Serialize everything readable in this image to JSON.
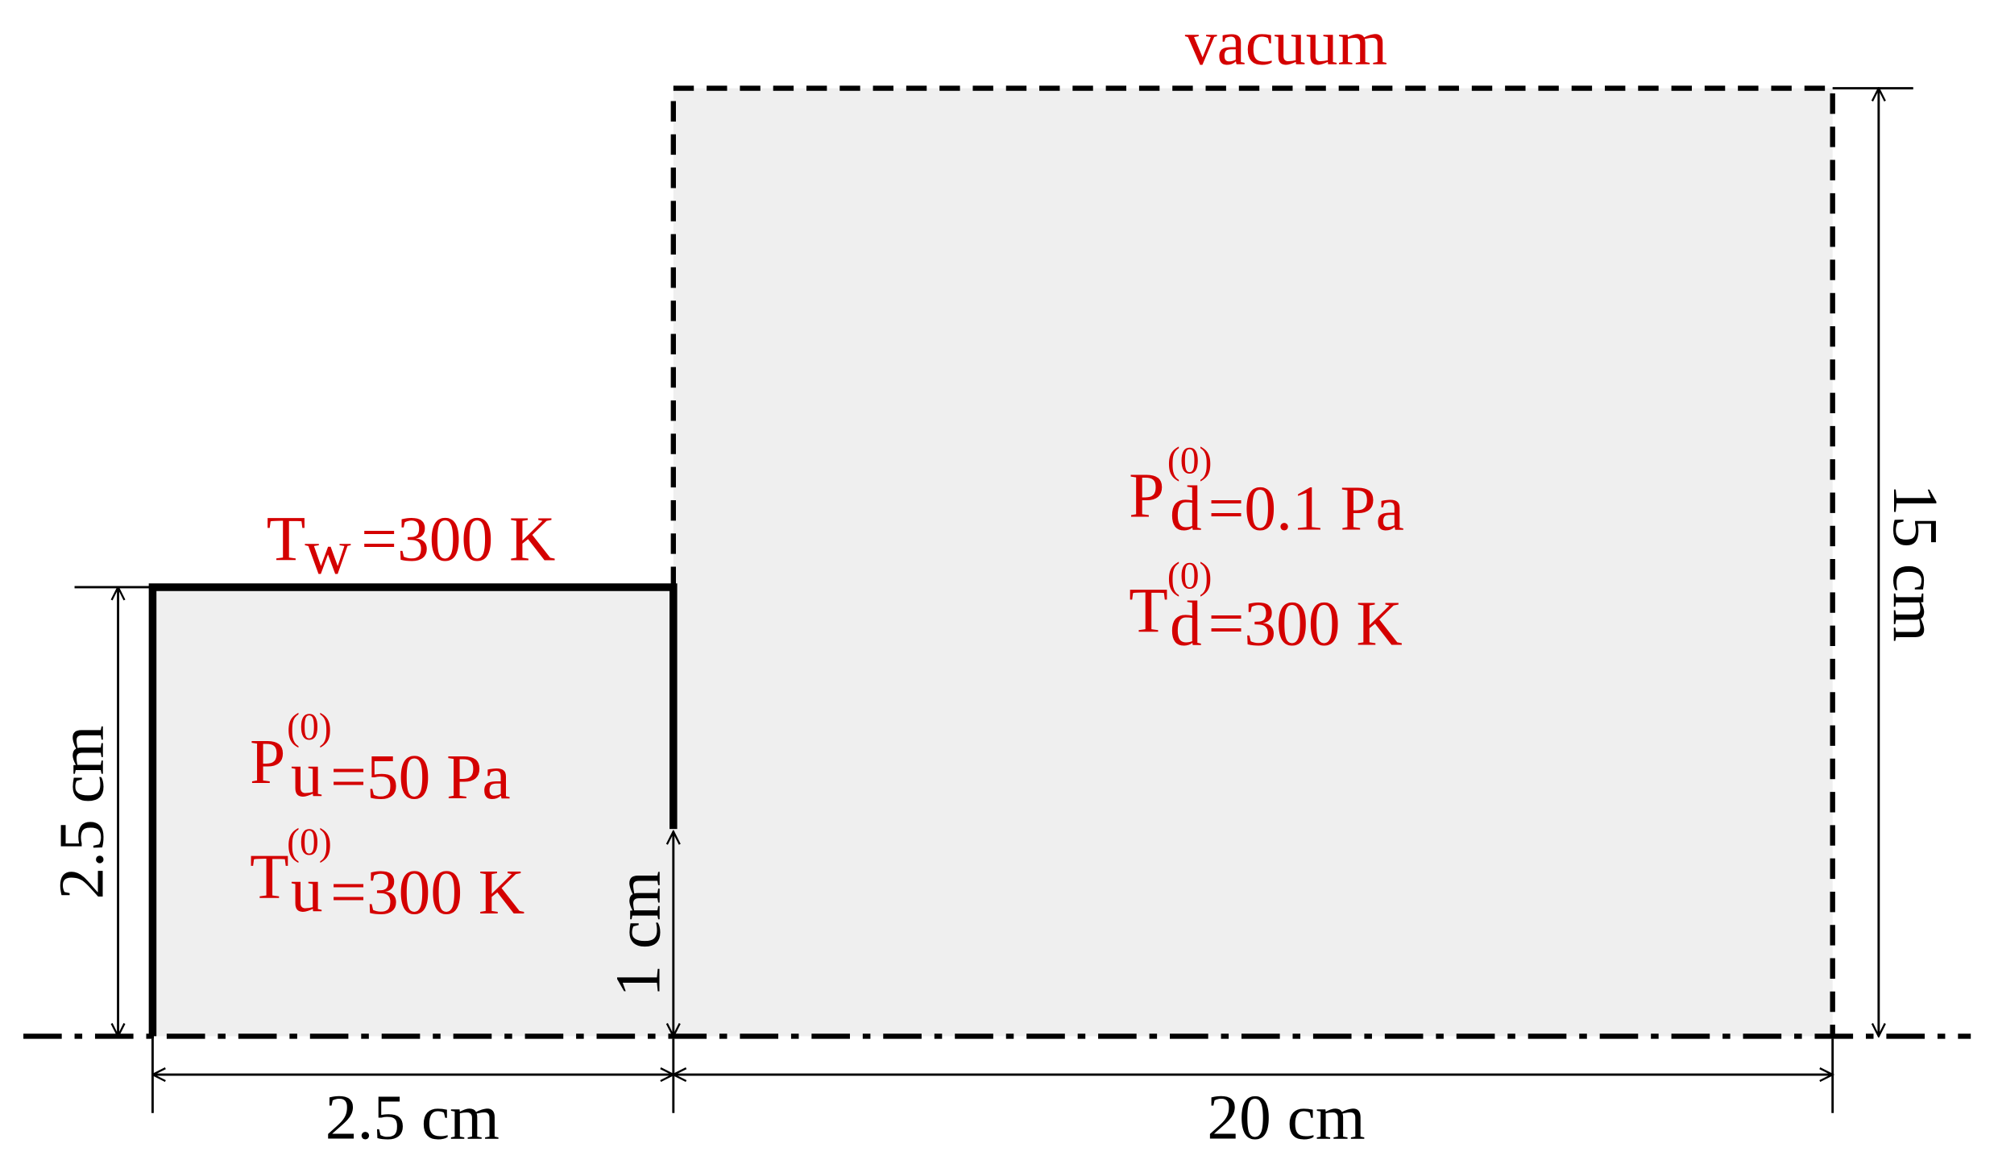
{
  "labels": {
    "vacuum": "vacuum",
    "wall_temperature": {
      "symbol": "T",
      "subscript": "w",
      "text": "=300 K"
    },
    "upstream_pressure": {
      "symbol": "P",
      "superscript": "(0)",
      "subscript": "u",
      "text": "=50 Pa"
    },
    "upstream_temperature": {
      "symbol": "T",
      "superscript": "(0)",
      "subscript": "u",
      "text": "=300 K"
    },
    "downstream_pressure": {
      "symbol": "P",
      "superscript": "(0)",
      "subscript": "d",
      "text": "=0.1 Pa"
    },
    "downstream_temperature": {
      "symbol": "T",
      "superscript": "(0)",
      "subscript": "d",
      "text": "=300 K"
    }
  },
  "dimensions": {
    "upstream_height": "2.5 cm",
    "upstream_length": "2.5 cm",
    "downstream_length": "20 cm",
    "downstream_height": "15 cm",
    "orifice_radius": "1 cm"
  }
}
